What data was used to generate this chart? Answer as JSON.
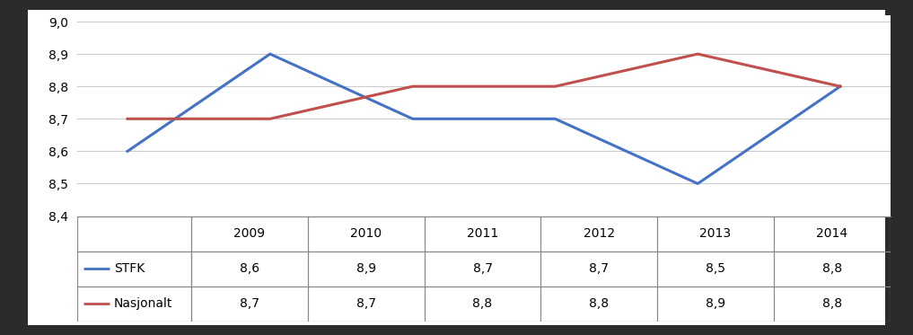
{
  "years": [
    2009,
    2010,
    2011,
    2012,
    2013,
    2014
  ],
  "stfk": [
    8.6,
    8.9,
    8.7,
    8.7,
    8.5,
    8.8
  ],
  "nasjonalt": [
    8.7,
    8.7,
    8.8,
    8.8,
    8.9,
    8.8
  ],
  "stfk_color": "#4472C4",
  "nasjonalt_color": "#C0504D",
  "ylim_min": 8.4,
  "ylim_max": 9.02,
  "yticks": [
    8.4,
    8.5,
    8.6,
    8.7,
    8.8,
    8.9,
    9.0
  ],
  "background_color": "#FFFFFF",
  "outer_background": "#2B2B2B",
  "line_width": 2.2,
  "table_stfk_label": "STFK",
  "table_nasjonalt_label": "Nasjonalt",
  "grid_color": "#CCCCCC",
  "border_color": "#888888"
}
